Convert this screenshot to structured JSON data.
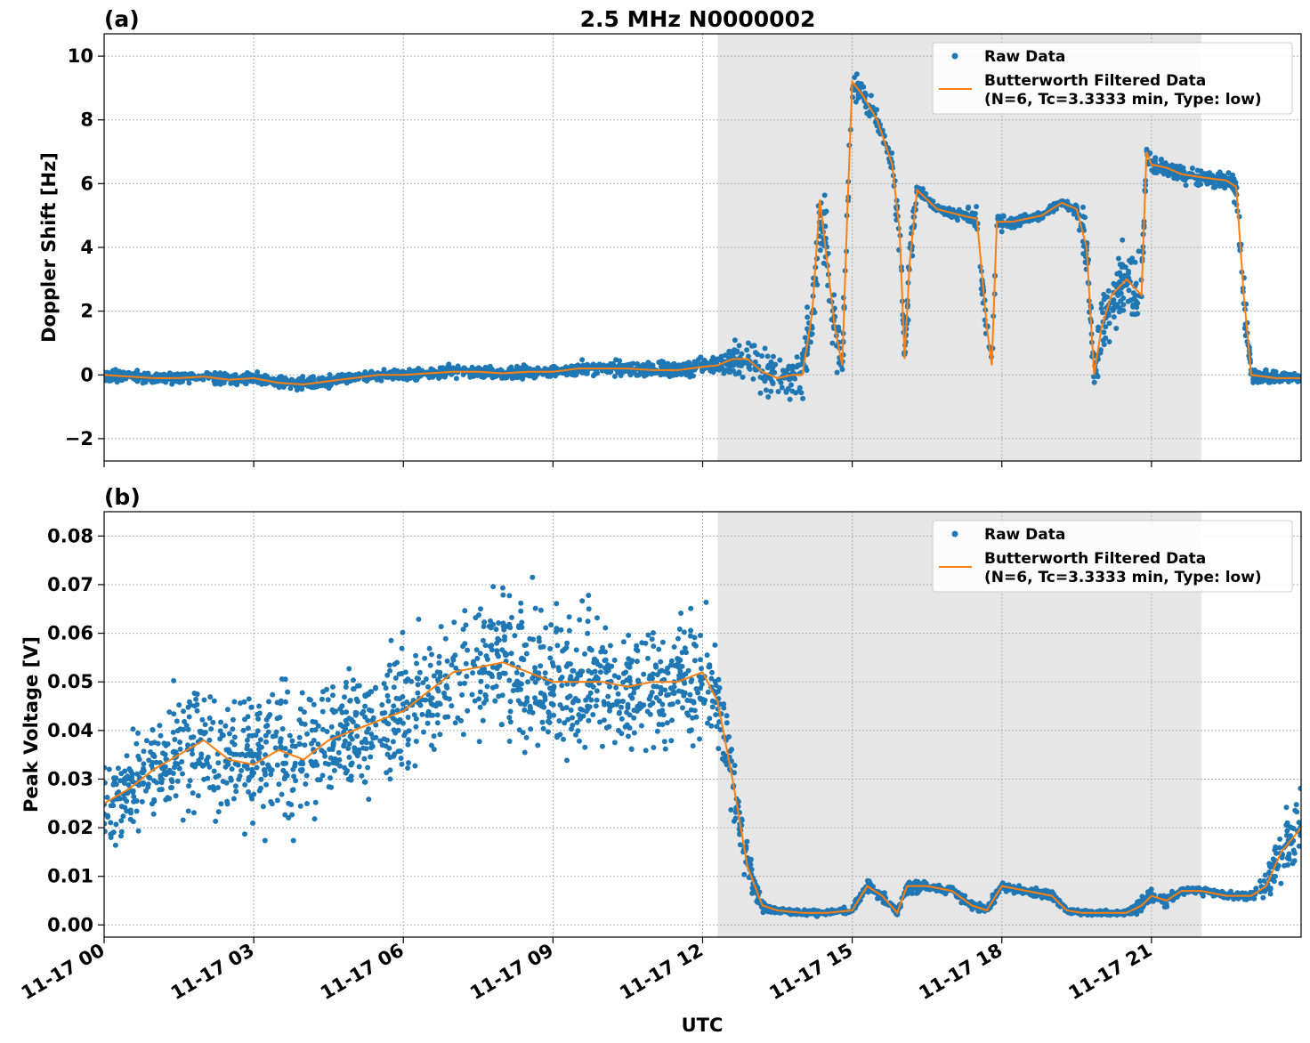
{
  "figure": {
    "title": "2.5 MHz N0000002",
    "xlabel": "UTC",
    "x_tick_labels": [
      "11-17 00",
      "11-17 03",
      "11-17 06",
      "11-17 09",
      "11-17 12",
      "11-17 15",
      "11-17 18",
      "11-17 21"
    ],
    "legend": {
      "raw": "Raw Data",
      "filtered_line1": "Butterworth Filtered Data",
      "filtered_line2": "(N=6, Tc=3.3333 min, Type: low)"
    },
    "colors": {
      "raw": "#1f77b4",
      "filtered": "#ff7f0e",
      "shade": "#e6e6e6",
      "grid": "#b0b0b0"
    }
  },
  "chart_data": [
    {
      "type": "scatter",
      "panel_label": "(a)",
      "title": "2.5 MHz N0000002",
      "xlabel": "",
      "ylabel": "Doppler Shift [Hz]",
      "x_unit": "hours UTC on 11-17",
      "xlim": [
        0,
        24
      ],
      "ylim": [
        -2.7,
        10.7
      ],
      "y_ticks": [
        -2,
        0,
        2,
        4,
        6,
        8,
        10
      ],
      "y_tick_labels": [
        "−2",
        "0",
        "2",
        "4",
        "6",
        "8",
        "10"
      ],
      "grid": true,
      "legend_position": "top-right",
      "shaded_region": [
        12.3,
        22.0
      ],
      "series": [
        {
          "name": "Butterworth Filtered Data",
          "style": "line",
          "x": [
            0,
            0.5,
            1,
            1.5,
            2,
            2.5,
            3,
            3.5,
            4,
            4.5,
            5,
            5.5,
            6,
            6.5,
            7,
            7.5,
            8,
            8.5,
            9,
            9.5,
            10,
            10.5,
            11,
            11.5,
            12,
            12.3,
            12.6,
            12.9,
            13.2,
            13.5,
            13.8,
            14.0,
            14.2,
            14.35,
            14.5,
            14.65,
            14.8,
            14.9,
            15.0,
            15.2,
            15.5,
            15.8,
            15.95,
            16.05,
            16.15,
            16.3,
            16.7,
            17.2,
            17.5,
            17.7,
            17.8,
            17.9,
            18.2,
            18.8,
            19.2,
            19.5,
            19.7,
            19.85,
            20.0,
            20.2,
            20.5,
            20.8,
            20.9,
            21.0,
            21.3,
            21.6,
            22.0,
            22.5,
            22.7,
            22.85,
            23.0,
            23.5,
            24.0
          ],
          "y": [
            0.0,
            -0.05,
            -0.1,
            -0.1,
            -0.05,
            -0.15,
            -0.1,
            -0.25,
            -0.3,
            -0.2,
            -0.1,
            0.0,
            0.0,
            0.05,
            0.1,
            0.1,
            0.05,
            0.1,
            0.1,
            0.2,
            0.2,
            0.2,
            0.15,
            0.15,
            0.25,
            0.3,
            0.5,
            0.5,
            0.1,
            -0.1,
            0.0,
            0.0,
            2.0,
            5.5,
            3.5,
            1.5,
            0.3,
            5.0,
            9.2,
            8.8,
            8.0,
            6.6,
            4.5,
            0.5,
            3.5,
            5.8,
            5.2,
            5.0,
            4.9,
            1.5,
            0.3,
            4.8,
            4.8,
            5.0,
            5.4,
            5.2,
            4.0,
            0.0,
            1.5,
            2.5,
            3.0,
            2.5,
            7.0,
            6.6,
            6.5,
            6.3,
            6.2,
            6.1,
            5.9,
            2.5,
            0.0,
            -0.1,
            -0.1
          ]
        },
        {
          "name": "Raw Data",
          "style": "points",
          "x": [
            0,
            0.5,
            1,
            1.5,
            2,
            2.5,
            3,
            3.5,
            4,
            4.5,
            5,
            5.5,
            6,
            6.5,
            7,
            7.5,
            8,
            8.5,
            9,
            9.5,
            10,
            10.5,
            11,
            11.5,
            12,
            12.3,
            12.6,
            12.9,
            13.2,
            13.5,
            13.8,
            14.0,
            14.2,
            14.35,
            14.5,
            14.65,
            14.8,
            14.9,
            15.0,
            15.2,
            15.5,
            15.8,
            15.95,
            16.05,
            16.15,
            16.3,
            16.7,
            17.2,
            17.5,
            17.7,
            17.8,
            17.9,
            18.2,
            18.8,
            19.2,
            19.5,
            19.7,
            19.85,
            20.0,
            20.2,
            20.5,
            20.8,
            20.9,
            21.0,
            21.3,
            21.6,
            22.0,
            22.5,
            22.7,
            22.85,
            23.0,
            23.5,
            24.0
          ],
          "y": [
            0.0,
            -0.05,
            -0.1,
            -0.1,
            -0.05,
            -0.15,
            -0.1,
            -0.25,
            -0.3,
            -0.2,
            -0.1,
            0.0,
            0.0,
            0.05,
            0.1,
            0.1,
            0.05,
            0.1,
            0.1,
            0.2,
            0.2,
            0.2,
            0.15,
            0.15,
            0.25,
            0.3,
            0.5,
            0.5,
            0.1,
            -0.1,
            0.0,
            0.0,
            2.0,
            5.5,
            3.5,
            1.5,
            0.3,
            5.0,
            9.2,
            8.8,
            8.0,
            6.6,
            4.5,
            0.5,
            3.5,
            5.8,
            5.2,
            5.0,
            4.9,
            1.5,
            0.3,
            4.8,
            4.8,
            5.0,
            5.4,
            5.2,
            4.0,
            0.0,
            1.5,
            2.5,
            3.0,
            2.5,
            7.0,
            6.6,
            6.5,
            6.3,
            6.2,
            6.1,
            5.9,
            2.5,
            0.0,
            -0.1,
            -0.1
          ],
          "spread": [
            0.3,
            0.3,
            0.3,
            0.3,
            0.3,
            0.3,
            0.35,
            0.35,
            0.35,
            0.3,
            0.25,
            0.25,
            0.25,
            0.3,
            0.3,
            0.3,
            0.3,
            0.3,
            0.35,
            0.4,
            0.4,
            0.4,
            0.4,
            0.4,
            0.4,
            0.5,
            0.8,
            1.2,
            1.3,
            1.2,
            1.2,
            1.5,
            2.5,
            2.5,
            2.5,
            1.8,
            1.5,
            2.5,
            0.8,
            0.7,
            0.5,
            0.5,
            1.5,
            1.0,
            1.5,
            0.3,
            0.2,
            0.3,
            0.5,
            1.8,
            1.0,
            0.5,
            0.3,
            0.2,
            0.2,
            0.4,
            1.5,
            1.3,
            2.0,
            2.0,
            2.0,
            2.0,
            0.5,
            0.5,
            0.5,
            0.5,
            0.4,
            0.5,
            0.8,
            1.8,
            0.5,
            0.3,
            0.3
          ]
        }
      ]
    },
    {
      "type": "scatter",
      "panel_label": "(b)",
      "xlabel": "UTC",
      "ylabel": "Peak Voltage [V]",
      "x_unit": "hours UTC on 11-17",
      "xlim": [
        0,
        24
      ],
      "ylim": [
        -0.0025,
        0.085
      ],
      "y_ticks": [
        0.0,
        0.01,
        0.02,
        0.03,
        0.04,
        0.05,
        0.06,
        0.07,
        0.08
      ],
      "y_tick_labels": [
        "0.00",
        "0.01",
        "0.02",
        "0.03",
        "0.04",
        "0.05",
        "0.06",
        "0.07",
        "0.08"
      ],
      "grid": true,
      "legend_position": "top-right",
      "shaded_region": [
        12.3,
        22.0
      ],
      "series": [
        {
          "name": "Butterworth Filtered Data",
          "style": "line",
          "x": [
            0,
            0.5,
            1,
            1.5,
            2,
            2.5,
            3,
            3.5,
            4,
            4.5,
            5,
            5.5,
            6,
            6.5,
            7,
            7.5,
            8,
            8.5,
            9,
            9.5,
            10,
            10.5,
            11,
            11.5,
            12,
            12.3,
            12.6,
            12.9,
            13.2,
            13.5,
            14.0,
            14.5,
            15.0,
            15.3,
            15.6,
            15.9,
            16.1,
            16.5,
            17.0,
            17.4,
            17.7,
            18.0,
            18.5,
            19.0,
            19.3,
            19.6,
            20.0,
            20.5,
            20.8,
            21.0,
            21.3,
            21.6,
            22.0,
            22.5,
            23.0,
            23.3,
            23.6,
            24.0
          ],
          "y": [
            0.025,
            0.028,
            0.032,
            0.035,
            0.038,
            0.034,
            0.033,
            0.036,
            0.034,
            0.038,
            0.04,
            0.042,
            0.044,
            0.048,
            0.052,
            0.053,
            0.054,
            0.052,
            0.05,
            0.05,
            0.05,
            0.049,
            0.05,
            0.05,
            0.052,
            0.046,
            0.03,
            0.012,
            0.004,
            0.003,
            0.0025,
            0.0025,
            0.003,
            0.008,
            0.006,
            0.0025,
            0.008,
            0.008,
            0.007,
            0.004,
            0.003,
            0.008,
            0.007,
            0.006,
            0.003,
            0.0025,
            0.0025,
            0.0025,
            0.004,
            0.006,
            0.005,
            0.007,
            0.007,
            0.006,
            0.006,
            0.008,
            0.015,
            0.02
          ]
        },
        {
          "name": "Raw Data",
          "style": "points",
          "x": [
            0,
            0.5,
            1,
            1.5,
            2,
            2.5,
            3,
            3.5,
            4,
            4.5,
            5,
            5.5,
            6,
            6.5,
            7,
            7.5,
            8,
            8.5,
            9,
            9.5,
            10,
            10.5,
            11,
            11.5,
            12,
            12.3,
            12.6,
            12.9,
            13.2,
            13.5,
            14.0,
            14.5,
            15.0,
            15.3,
            15.6,
            15.9,
            16.1,
            16.5,
            17.0,
            17.4,
            17.7,
            18.0,
            18.5,
            19.0,
            19.3,
            19.6,
            20.0,
            20.5,
            20.8,
            21.0,
            21.3,
            21.6,
            22.0,
            22.5,
            23.0,
            23.3,
            23.6,
            24.0
          ],
          "y": [
            0.025,
            0.028,
            0.032,
            0.035,
            0.038,
            0.034,
            0.033,
            0.036,
            0.034,
            0.038,
            0.04,
            0.042,
            0.044,
            0.048,
            0.052,
            0.053,
            0.054,
            0.052,
            0.05,
            0.05,
            0.05,
            0.049,
            0.05,
            0.05,
            0.052,
            0.046,
            0.03,
            0.012,
            0.004,
            0.003,
            0.0025,
            0.0025,
            0.003,
            0.008,
            0.006,
            0.0025,
            0.008,
            0.008,
            0.007,
            0.004,
            0.003,
            0.008,
            0.007,
            0.006,
            0.003,
            0.0025,
            0.0025,
            0.0025,
            0.004,
            0.006,
            0.005,
            0.007,
            0.007,
            0.006,
            0.006,
            0.008,
            0.015,
            0.02
          ],
          "spread": [
            0.015,
            0.017,
            0.018,
            0.02,
            0.022,
            0.022,
            0.023,
            0.024,
            0.022,
            0.022,
            0.022,
            0.022,
            0.024,
            0.024,
            0.024,
            0.025,
            0.025,
            0.024,
            0.024,
            0.023,
            0.022,
            0.022,
            0.022,
            0.022,
            0.022,
            0.018,
            0.014,
            0.008,
            0.002,
            0.001,
            0.001,
            0.001,
            0.0015,
            0.002,
            0.002,
            0.001,
            0.003,
            0.0015,
            0.0015,
            0.0015,
            0.0015,
            0.0015,
            0.0015,
            0.0015,
            0.001,
            0.001,
            0.001,
            0.001,
            0.003,
            0.003,
            0.002,
            0.002,
            0.0015,
            0.0015,
            0.002,
            0.006,
            0.012,
            0.014
          ]
        }
      ]
    }
  ]
}
